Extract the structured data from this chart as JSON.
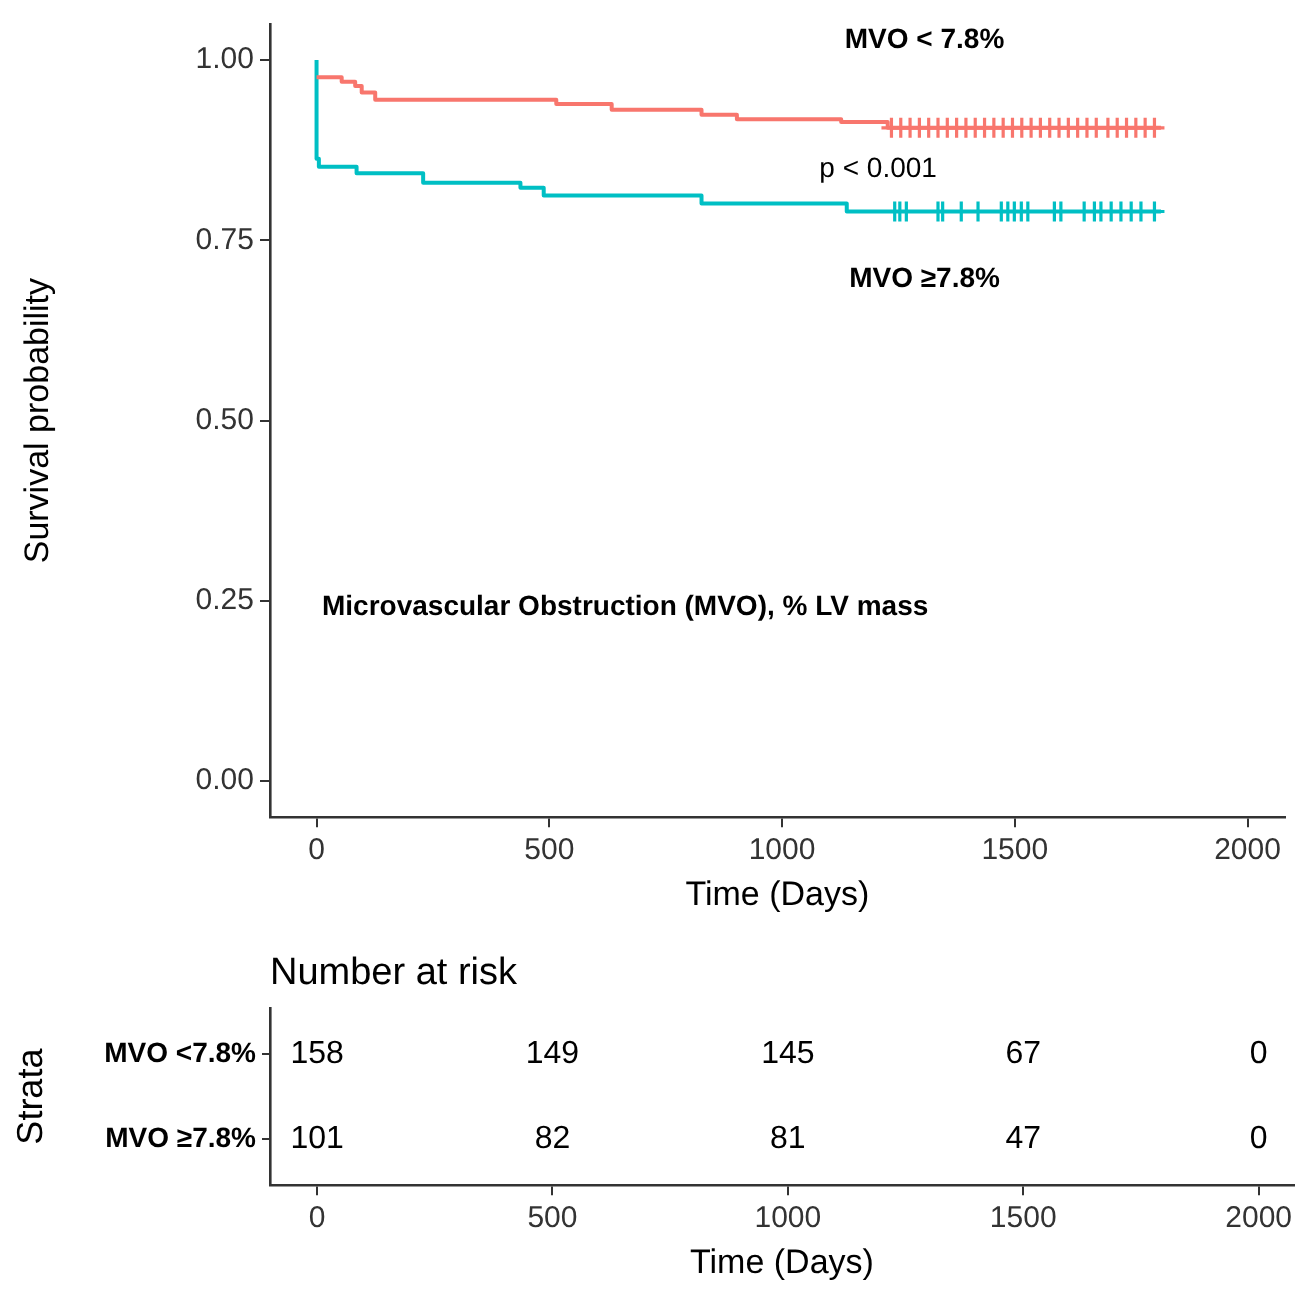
{
  "chart_data": [
    {
      "type": "step",
      "xlabel": "Time (Days)",
      "ylabel": "Survival probability",
      "xlim": [
        -100,
        2080
      ],
      "xticks": [
        0,
        500,
        1000,
        1500,
        2000
      ],
      "ylim": [
        -0.05,
        1.05
      ],
      "yticks": [
        {
          "value": 0,
          "label": "0.00"
        },
        {
          "value": 0.25,
          "label": "0.25"
        },
        {
          "value": 0.5,
          "label": "0.50"
        },
        {
          "value": 0.75,
          "label": "0.75"
        },
        {
          "value": 1,
          "label": "1.00"
        }
      ],
      "grid": false,
      "legend": false,
      "annotations": [
        "p < 0.001",
        "Microvascular Obstruction (MVO), % LV mass"
      ],
      "series": [
        {
          "name": "MVO < 7.8%",
          "color": "#f8766d",
          "x": [
            0,
            54,
            83,
            97,
            126,
            515,
            634,
            827,
            903,
            1127,
            1227,
            1814
          ],
          "values": [
            0.976,
            0.97,
            0.964,
            0.955,
            0.945,
            0.939,
            0.931,
            0.924,
            0.918,
            0.914,
            0.906,
            0.906
          ]
        },
        {
          "name": "MVO ≥7.8%",
          "color": "#00bfc4",
          "x": [
            0,
            0,
            5,
            86,
            229,
            438,
            488,
            827,
            1139,
            1814
          ],
          "values": [
            1,
            0.863,
            0.852,
            0.843,
            0.83,
            0.823,
            0.812,
            0.801,
            0.79,
            0.79
          ]
        },
        {
          "type": "scatter",
          "marker": "cross",
          "color": "#f8766d",
          "x": [
            1235,
            1255,
            1275,
            1295,
            1315,
            1335,
            1355,
            1375,
            1395,
            1415,
            1435,
            1455,
            1475,
            1495,
            1515,
            1535,
            1555,
            1575,
            1595,
            1615,
            1635,
            1655,
            1675,
            1700,
            1720,
            1740,
            1760,
            1780,
            1800
          ],
          "values": [
            0.906,
            0.906,
            0.906,
            0.906,
            0.906,
            0.906,
            0.906,
            0.906,
            0.906,
            0.906,
            0.906,
            0.906,
            0.906,
            0.906,
            0.906,
            0.906,
            0.906,
            0.906,
            0.906,
            0.906,
            0.906,
            0.906,
            0.906,
            0.906,
            0.906,
            0.906,
            0.906,
            0.906,
            0.906
          ]
        },
        {
          "type": "scatter",
          "marker": "cross",
          "color": "#00bfc4",
          "x": [
            1242,
            1253,
            1267,
            1335,
            1345,
            1385,
            1421,
            1471,
            1485,
            1499,
            1514,
            1528,
            1585,
            1599,
            1649,
            1671,
            1685,
            1707,
            1728,
            1750,
            1771,
            1800
          ],
          "values": [
            0.79,
            0.79,
            0.79,
            0.79,
            0.79,
            0.79,
            0.79,
            0.79,
            0.79,
            0.79,
            0.79,
            0.79,
            0.79,
            0.79,
            0.79,
            0.79,
            0.79,
            0.79,
            0.79,
            0.79,
            0.79,
            0.79
          ]
        }
      ]
    },
    {
      "type": "heatmap",
      "title": "Number at risk",
      "xlabel": "Time (Days)",
      "ylabel": "Strata",
      "categories": [
        "0",
        "500",
        "1000",
        "1500",
        "2000"
      ],
      "y_categories": [
        "MVO <7.8%",
        "MVO ≥7.8%"
      ],
      "data_labels": true,
      "cells": [
        [
          158,
          149,
          145,
          67,
          0
        ],
        [
          101,
          82,
          81,
          47,
          0
        ]
      ]
    }
  ]
}
